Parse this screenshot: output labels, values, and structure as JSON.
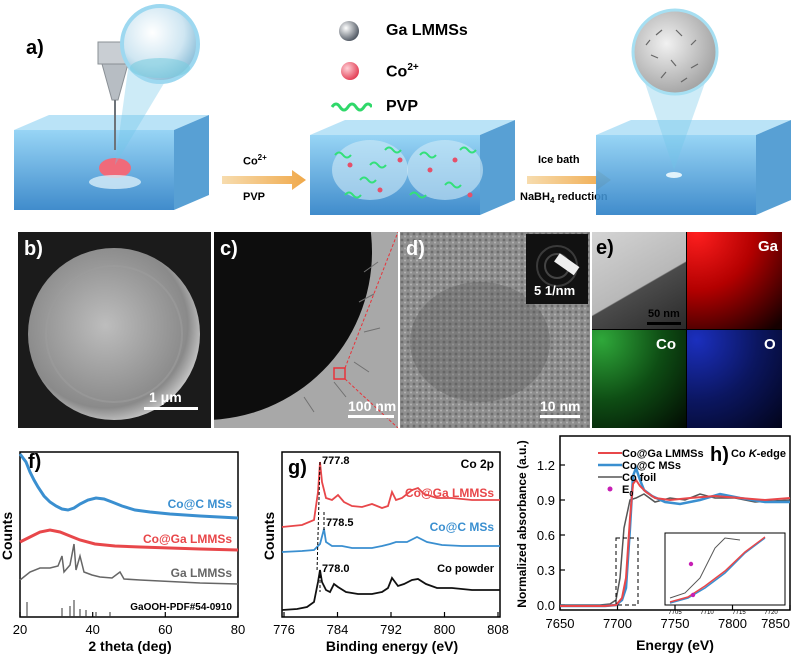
{
  "panel_a": {
    "letter": "a)",
    "legend": [
      {
        "label": "Ga LMMSs",
        "icon": "gray-sphere"
      },
      {
        "label": "Co",
        "sup": "2+",
        "icon": "red-sphere"
      },
      {
        "label": "PVP",
        "icon": "green-wave"
      }
    ],
    "step1_top": "Co",
    "step1_top_sup": "2+",
    "step1_bottom": "PVP",
    "step2_top": "Ice bath",
    "step2_bottom_a": "NaBH",
    "step2_bottom_sub": "4",
    "step2_bottom_b": " reduction"
  },
  "panel_b": {
    "letter": "b)",
    "scalebar": "1 μm"
  },
  "panel_c": {
    "letter": "c)",
    "scalebar": "100 nm"
  },
  "panel_d": {
    "letter": "d)",
    "scalebar": "10 nm",
    "inset_scalebar": "5 1/nm"
  },
  "panel_e": {
    "letter": "e)",
    "scalebar": "50 nm",
    "maps": [
      "Ga",
      "Co",
      "O"
    ]
  },
  "panel_f": {
    "letter": "f)",
    "series_labels": [
      "Co@C MSs",
      "Co@Ga LMMSs",
      "Ga LMMSs",
      "GaOOH-PDF#54-0910"
    ],
    "xlabel": "2 theta (deg)",
    "ylabel": "Counts",
    "xticks": [
      "20",
      "40",
      "60",
      "80"
    ]
  },
  "panel_g": {
    "letter": "g)",
    "title": "Co 2p",
    "series_labels": [
      "Co@Ga LMMSs",
      "Co@C MSs",
      "Co powder"
    ],
    "peaks": [
      "777.8",
      "778.5",
      "778.0"
    ],
    "xlabel": "Binding energy (eV)",
    "ylabel": "Counts",
    "xticks": [
      "776",
      "784",
      "792",
      "800",
      "808"
    ]
  },
  "panel_h": {
    "letter": "h)",
    "title_a": "Co ",
    "title_b": "K",
    "title_c": "-edge",
    "legend": [
      "Co@Ga LMMSs",
      "Co@C MSs",
      "Co foil",
      "E"
    ],
    "legend_e_sub": "0",
    "xlabel": "Energy (eV)",
    "ylabel": "Normalized absorbance (a.u.)",
    "xticks": [
      "7650",
      "7700",
      "7750",
      "7800",
      "7850"
    ],
    "yticks": [
      "0.0",
      "0.3",
      "0.6",
      "0.9",
      "1.2"
    ],
    "inset_xticks": [
      "7705",
      "7710",
      "7715",
      "7720"
    ]
  },
  "colors": {
    "red": "#e8474a",
    "blue": "#3a8fd0",
    "gray": "#555555",
    "black": "#111111",
    "magenta": "#c71fb4"
  }
}
